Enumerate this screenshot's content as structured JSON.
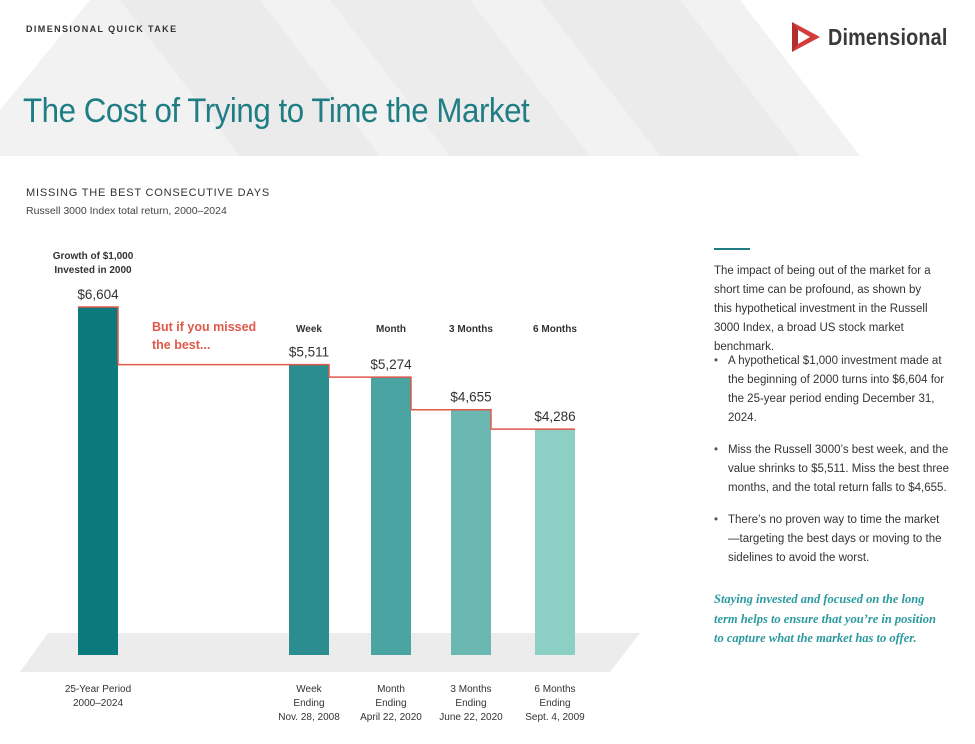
{
  "header": {
    "eyebrow": "DIMENSIONAL QUICK TAKE",
    "logo_text": "Dimensional",
    "title": "The Cost of Trying to Time the Market"
  },
  "chart_data": {
    "type": "bar",
    "title": "MISSING THE BEST CONSECUTIVE DAYS",
    "subtitle": "Russell 3000 Index total return, 2000–2024",
    "baseline_label": "Growth of $1,000 Invested in 2000",
    "callout": "But if you missed the best...",
    "categories": [
      "25-Year Period",
      "Week",
      "Month",
      "3 Months",
      "6 Months"
    ],
    "headers": [
      "",
      "Week",
      "Month",
      "3 Months",
      "6 Months"
    ],
    "values": [
      6604,
      5511,
      5274,
      4655,
      4286
    ],
    "value_labels": [
      "$6,604",
      "$5,511",
      "$5,274",
      "$4,655",
      "$4,286"
    ],
    "bottom_labels": [
      [
        "25-Year Period",
        "2000–2024"
      ],
      [
        "Week",
        "Ending",
        "Nov. 28, 2008"
      ],
      [
        "Month",
        "Ending",
        "April 22, 2020"
      ],
      [
        "3 Months",
        "Ending",
        "June 22, 2020"
      ],
      [
        "6 Months",
        "Ending",
        "Sept. 4, 2009"
      ]
    ],
    "colors": [
      "#0b7a7d",
      "#2b8d8f",
      "#4aa5a2",
      "#6bb8b2",
      "#8ccfc4"
    ],
    "step_line_color": "#e0584a",
    "ylim": [
      0,
      6604
    ]
  },
  "sidebar": {
    "intro": "The impact of being out of the market for a short time can be profound, as shown by this hypothetical investment in the Russell 3000 Index, a broad US stock market benchmark.",
    "bullets": [
      "A hypothetical $1,000 investment made at the beginning of 2000 turns into $6,604 for the 25-year period ending December 31, 2024.",
      "Miss the Russell 3000’s best week, and the value shrinks to $5,511. Miss the best three months, and the total return falls to $4,655.",
      "There’s no proven way to time the market—targeting the best days or moving to the sidelines to avoid the worst."
    ],
    "quote": "Staying invested and focused on the long term helps to ensure that you’re in position to capture what the market has to offer."
  }
}
